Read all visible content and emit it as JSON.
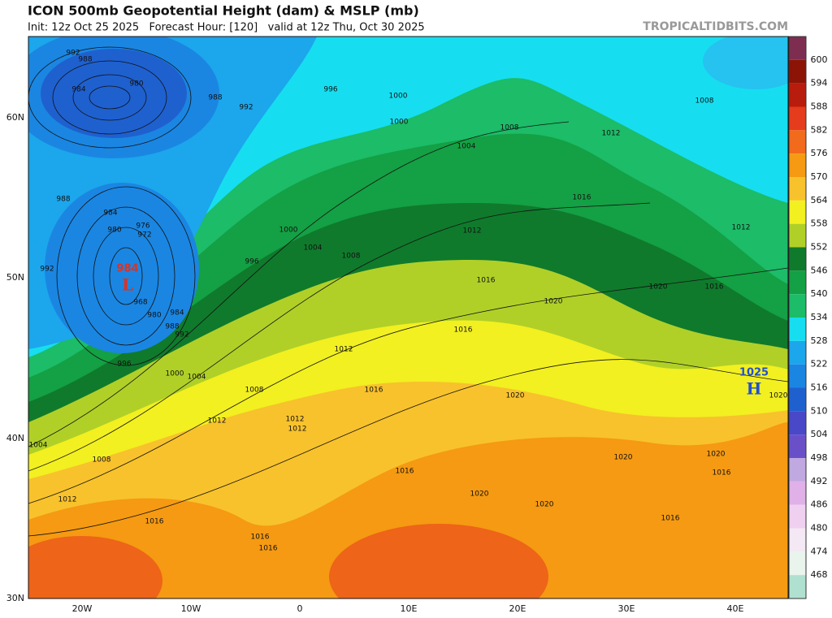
{
  "header": {
    "title": "ICON 500mb Geopotential Height (dam) & MSLP (mb)",
    "subtitle": "Init: 12z Oct 25 2025   Forecast Hour: [120]   valid at 12z Thu, Oct 30 2025",
    "watermark": "TROPICALTIDBITS.COM"
  },
  "colorbar": {
    "levels": [
      600,
      594,
      588,
      582,
      576,
      570,
      564,
      558,
      552,
      546,
      540,
      534,
      528,
      522,
      516,
      510,
      504,
      498,
      492,
      486,
      480,
      474,
      468
    ],
    "colors": [
      "#7d2e50",
      "#8c1406",
      "#b81c0c",
      "#e43c1c",
      "#f26a1c",
      "#f59a12",
      "#f8c22c",
      "#f2f020",
      "#b0d028",
      "#0f7a2c",
      "#14a044",
      "#1cbc68",
      "#16def0",
      "#1ca6ec",
      "#1a86e2",
      "#1f60cf",
      "#4848c8",
      "#6a50c8",
      "#c0a8e0",
      "#e0b0e8",
      "#f0d0f0",
      "#f4e8f4",
      "#e8f4ec",
      "#b0e0d0"
    ]
  },
  "axes": {
    "lat_labels": [
      "60N",
      "50N",
      "40N",
      "30N"
    ],
    "lon_labels": [
      "20W",
      "10W",
      "0",
      "10E",
      "20E",
      "30E",
      "40E"
    ]
  },
  "pressure_centers": [
    {
      "value": 984,
      "symbol": "L"
    },
    {
      "value": 1025,
      "symbol": "H"
    }
  ],
  "isobar_labels": [
    992,
    988,
    984,
    980,
    988,
    992,
    996,
    1000,
    1000,
    1008,
    1012,
    1008,
    1004,
    984,
    980,
    976,
    972,
    988,
    992,
    968,
    980,
    984,
    988,
    992,
    996,
    1000,
    1004,
    1000,
    1004,
    1008,
    996,
    1012,
    1016,
    1016,
    1020,
    1020,
    1016,
    1012,
    1016,
    1012,
    1016,
    1008,
    1012,
    1012,
    1012,
    1020,
    1020,
    1004,
    1008,
    1012,
    1016,
    1016,
    1016,
    1016,
    1020,
    1020,
    1020,
    1020,
    1016,
    1016
  ]
}
